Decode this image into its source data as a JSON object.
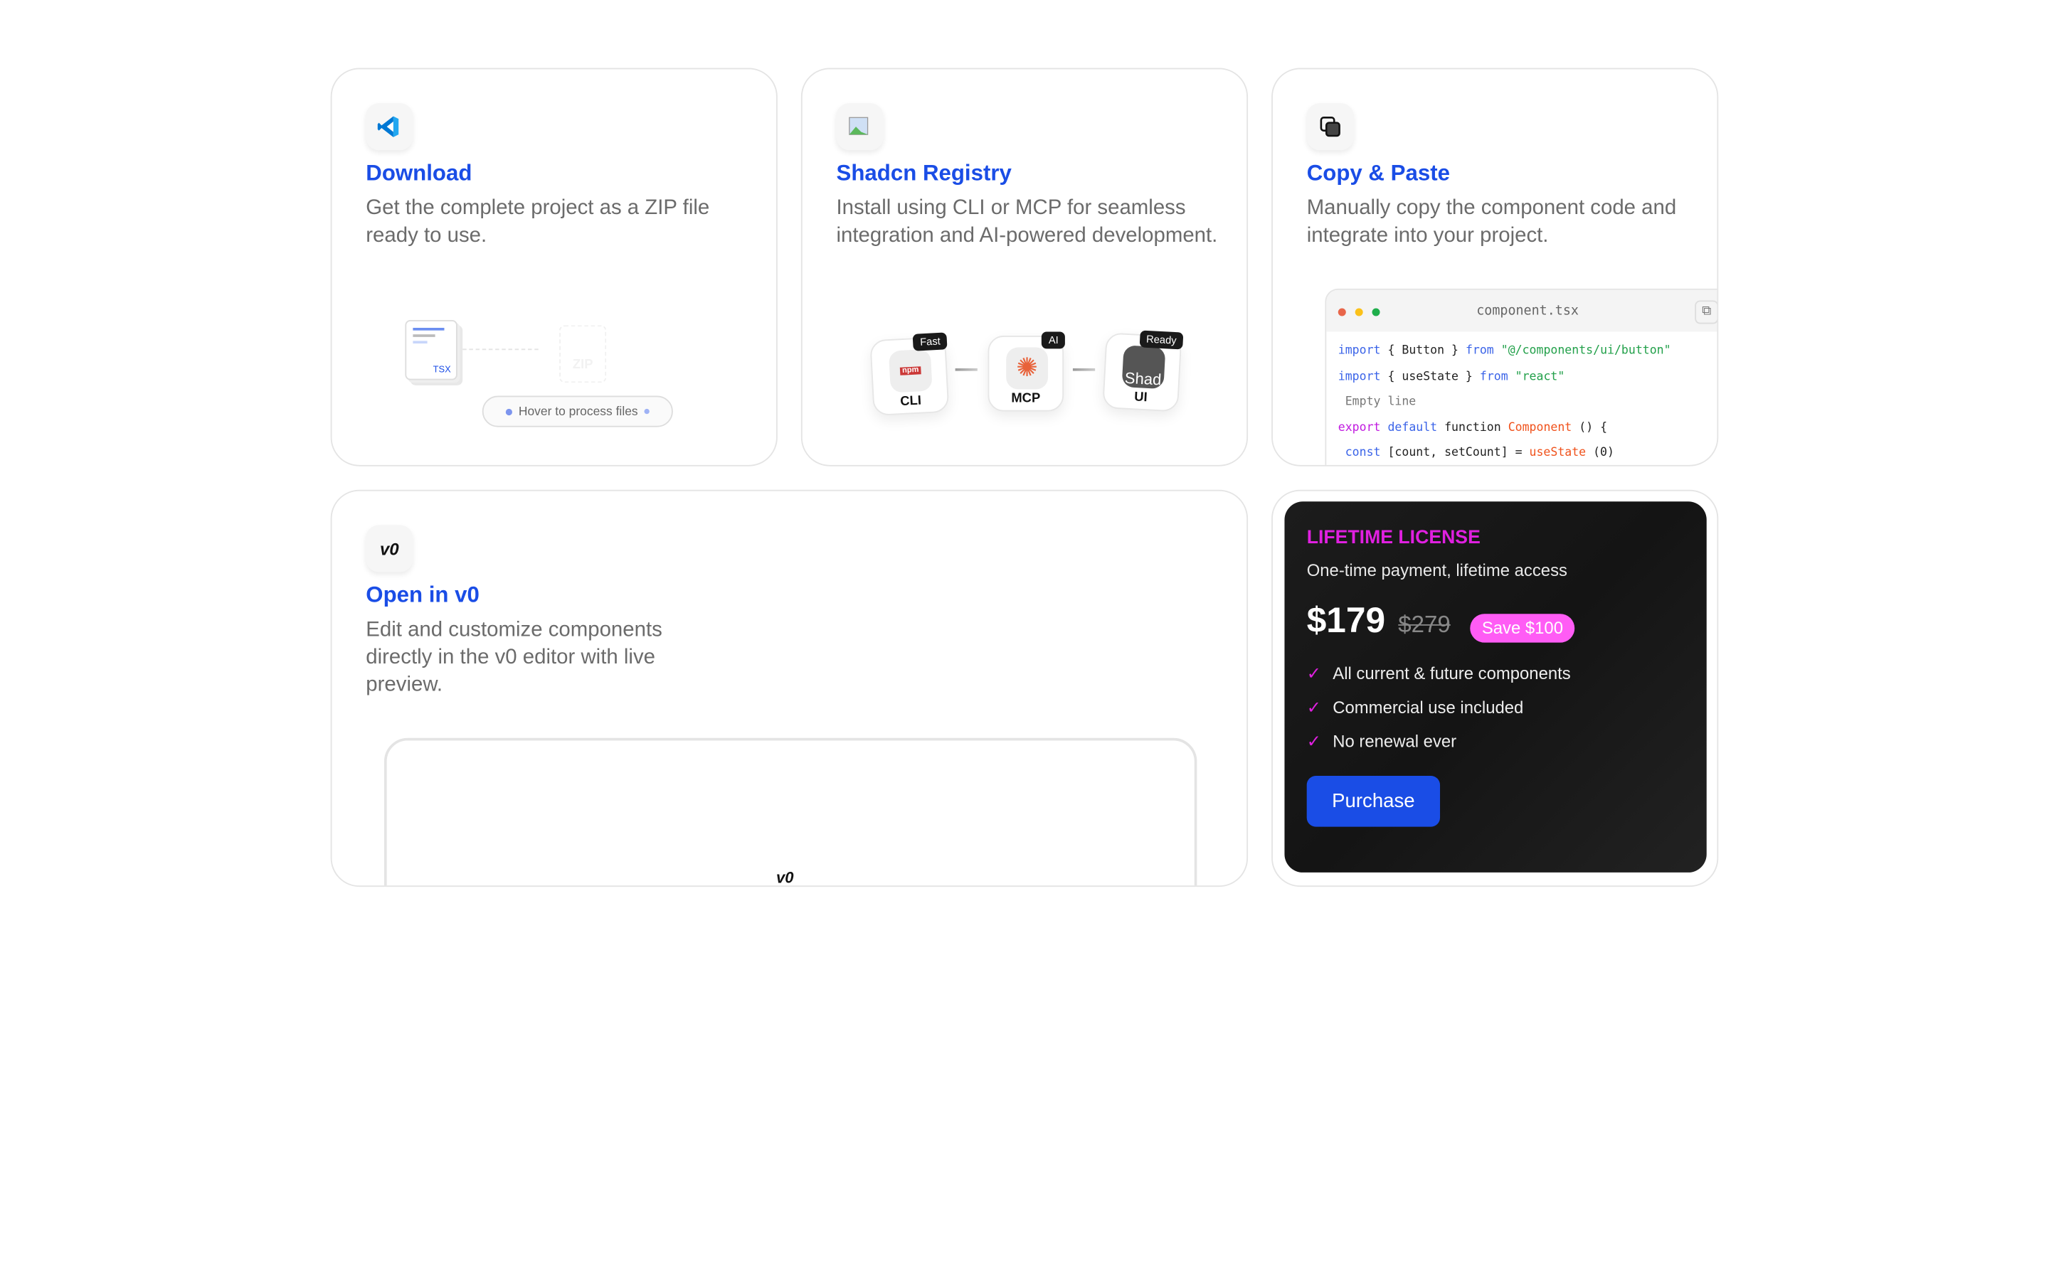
{
  "cards": {
    "download": {
      "title": "Download",
      "description": "Get the complete project as a ZIP file ready to use.",
      "icon": "vscode-icon",
      "file_label": "TSX",
      "zip_label": "ZIP",
      "hint": "Hover to process files"
    },
    "registry": {
      "title": "Shadcn Registry",
      "description": "Install using CLI or MCP for seamless integration and AI-powered development.",
      "icon": "broken-image-icon",
      "steps": [
        {
          "label": "CLI",
          "badge": "Fast",
          "icon": "npm-icon"
        },
        {
          "label": "MCP",
          "badge": "AI",
          "icon": "sparkle-icon"
        },
        {
          "label": "UI",
          "badge": "Ready",
          "icon": "shadcn-image-icon",
          "image_alt": "Shad"
        }
      ]
    },
    "copy": {
      "title": "Copy & Paste",
      "description": "Manually copy the component code and integrate into your project.",
      "icon": "copy-icon",
      "filename": "component.tsx",
      "code": [
        [
          [
            "kw",
            "import"
          ],
          [
            "",
            "{ Button }"
          ],
          [
            "kw",
            "from"
          ],
          [
            "str",
            "\"@/components/ui/button\""
          ]
        ],
        [
          [
            "kw",
            "import"
          ],
          [
            "",
            "{ useState }"
          ],
          [
            "kw",
            "from"
          ],
          [
            "str",
            "\"react\""
          ]
        ],
        [
          [
            "cm",
            " Empty line"
          ]
        ],
        [
          [
            "ex",
            "export"
          ],
          [
            "kw",
            "default"
          ],
          [
            "",
            "function"
          ],
          [
            "fn",
            "Component"
          ],
          [
            "",
            "() {"
          ]
        ],
        [
          [
            "kw",
            " const"
          ],
          [
            "",
            "[count, setCount] ="
          ],
          [
            "fn",
            "useState"
          ],
          [
            "",
            "(0)"
          ]
        ]
      ]
    },
    "v0": {
      "title": "Open in v0",
      "description": "Edit and customize components directly in the v0 editor with live preview.",
      "icon": "v0-logo-icon"
    }
  },
  "license": {
    "heading": "LIFETIME LICENSE",
    "subtitle": "One-time payment, lifetime access",
    "price": "$179",
    "old_price": "$279",
    "save": "Save $100",
    "features": [
      "All current & future components",
      "Commercial use included",
      "No renewal ever"
    ],
    "cta": "Purchase",
    "colors": {
      "accent": "#e020e0",
      "badge": "#ff5cf5",
      "button": "#1a4de6"
    }
  }
}
